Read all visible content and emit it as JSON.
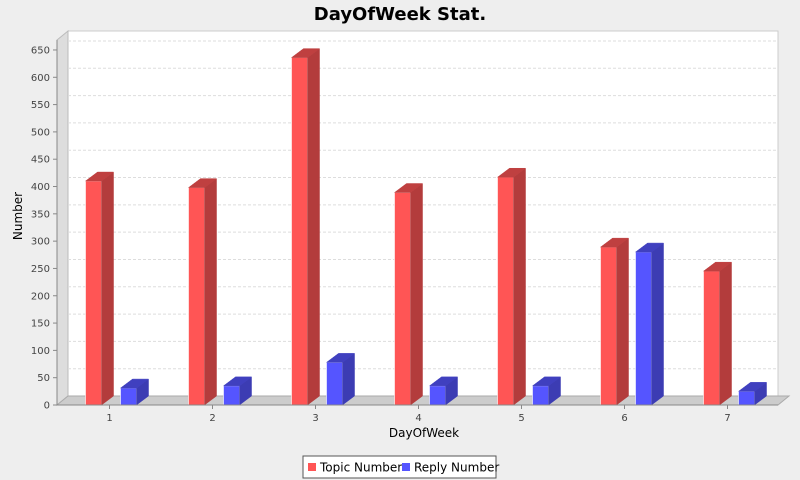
{
  "colors": {
    "background": "#eeeeee",
    "plot_background": "#ffffff",
    "grid": "#dddddd",
    "floor": "#cccccc",
    "topic": "#ff5555",
    "topic_side": "#b33c3c",
    "topic_top": "#bf4040",
    "reply": "#5555ff",
    "reply_side": "#3c3cb3",
    "reply_top": "#4040bf"
  },
  "chart_data": {
    "type": "bar",
    "title": "DayOfWeek Stat.",
    "xlabel": "DayOfWeek",
    "ylabel": "Number",
    "categories": [
      "1",
      "2",
      "3",
      "4",
      "5",
      "6",
      "7"
    ],
    "series": [
      {
        "name": "Topic Number",
        "values": [
          410,
          398,
          636,
          389,
          417,
          289,
          245
        ]
      },
      {
        "name": "Reply Number",
        "values": [
          31,
          35,
          78,
          35,
          35,
          280,
          25
        ]
      }
    ],
    "ylim": [
      0,
      650
    ],
    "yticks": [
      "0",
      "50",
      "100",
      "150",
      "200",
      "250",
      "300",
      "350",
      "400",
      "450",
      "500",
      "550",
      "600",
      "650"
    ],
    "grid": true,
    "legend_position": "bottom",
    "style": "3d"
  }
}
